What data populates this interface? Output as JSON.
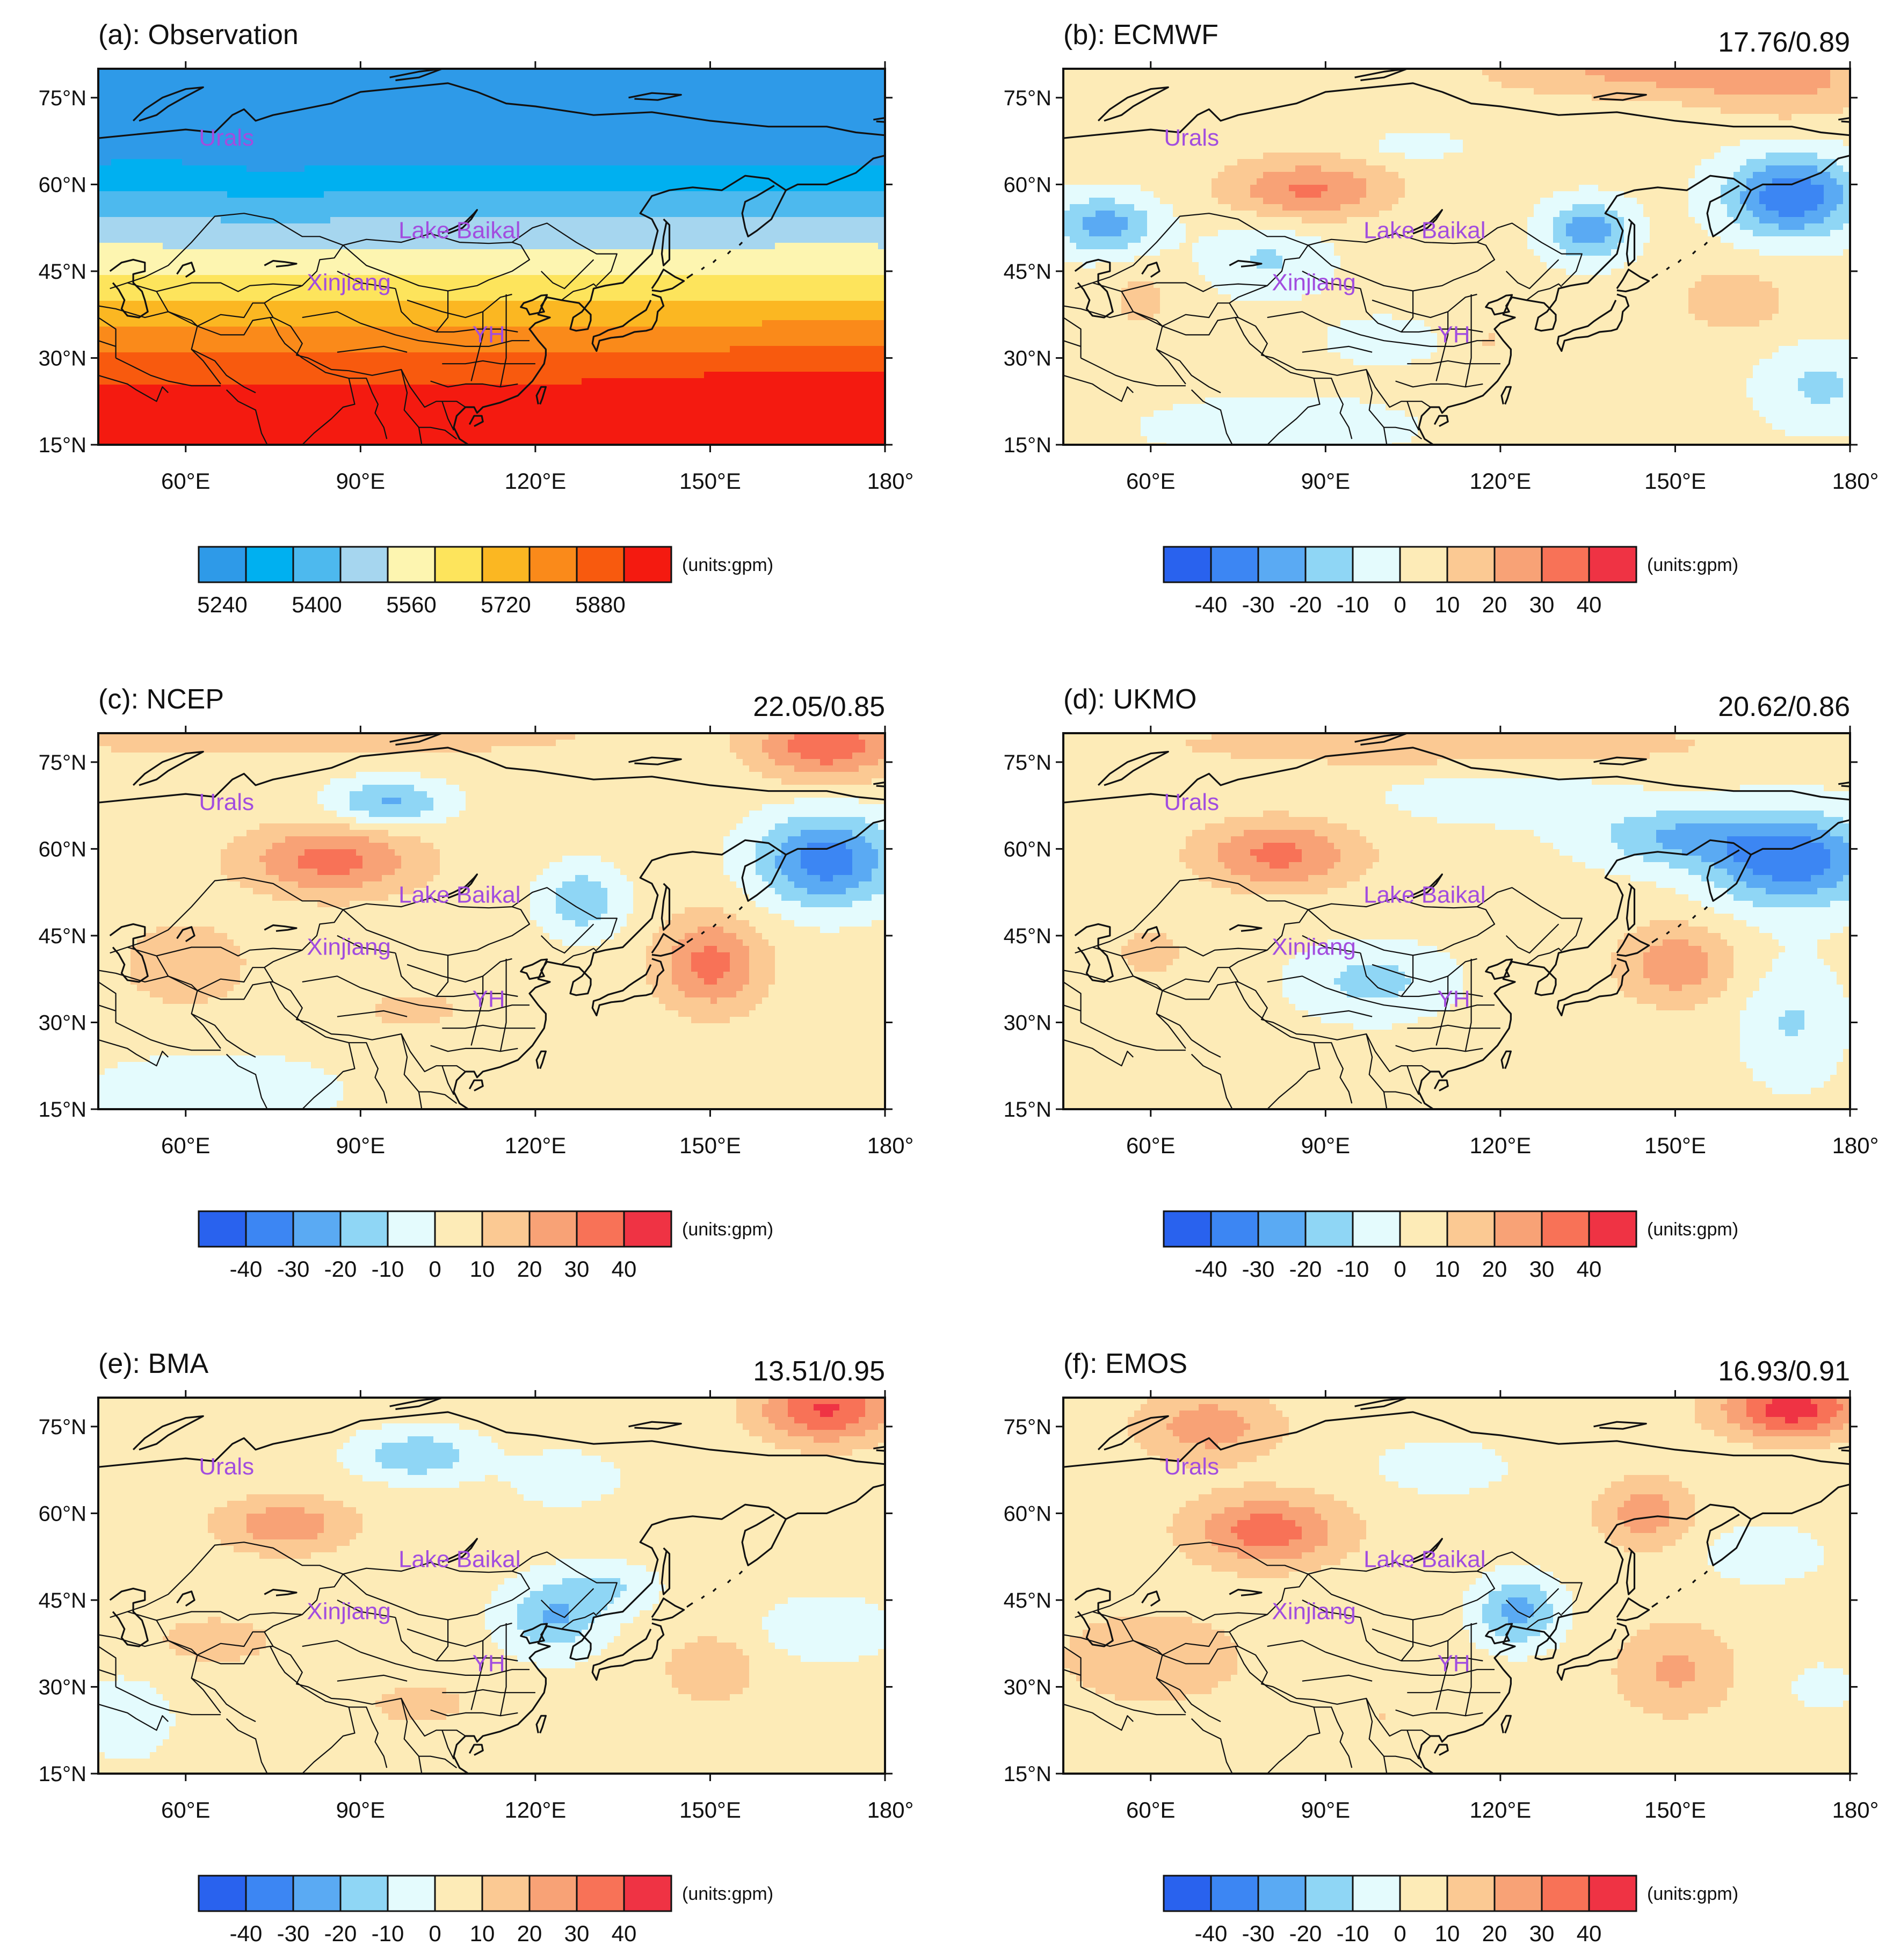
{
  "figure": {
    "axes": {
      "lat_labels": [
        "75°N",
        "60°N",
        "45°N",
        "30°N",
        "15°N"
      ],
      "lat_values": [
        75,
        60,
        45,
        30,
        15
      ],
      "lon_labels": [
        "60°E",
        "90°E",
        "120°E",
        "150°E",
        "180°"
      ],
      "lon_values": [
        60,
        90,
        120,
        150,
        180
      ],
      "lon_range": [
        45,
        180
      ],
      "lat_range": [
        15,
        80
      ]
    },
    "regions": [
      {
        "name": "Urals",
        "lon": 67,
        "lat": 68
      },
      {
        "name": "Lake Baikal",
        "lon": 107,
        "lat": 52
      },
      {
        "name": "Xinjiang",
        "lon": 88,
        "lat": 43
      },
      {
        "name": "YH",
        "lon": 112,
        "lat": 34
      }
    ],
    "colors": {
      "region_label": "#a24ddf",
      "obs": [
        "#2e9ae8",
        "#00b0f0",
        "#4db9ee",
        "#a6d6ef",
        "#fdf5b0",
        "#fde45c",
        "#fbb722",
        "#fa8a1a",
        "#f85a0e",
        "#f41a10"
      ],
      "anom": [
        "#2962ee",
        "#3c86f3",
        "#5aaaf3",
        "#8fd6f5",
        "#e4fbfd",
        "#fdebb7",
        "#fbc993",
        "#f8a276",
        "#f87257",
        "#ef3344"
      ]
    },
    "colorbars": {
      "obs_ticks": [
        "5240",
        "5400",
        "5560",
        "5720",
        "5880"
      ],
      "anom_ticks": [
        "-40",
        "-30",
        "-20",
        "-10",
        "0",
        "10",
        "20",
        "30",
        "40"
      ],
      "units": "(units:gpm)"
    },
    "panels": [
      {
        "id": "a",
        "title": "(a): Observation",
        "score": "",
        "kind": "obs",
        "field": {
          "base": 5520,
          "gradient": -17,
          "lat0": 47,
          "features": [
            [
              75,
              60,
              10,
              8,
              -20
            ],
            [
              170,
              30,
              20,
              8,
              30
            ],
            [
              150,
              22,
              15,
              6,
              25
            ],
            [
              55,
              70,
              15,
              10,
              12
            ]
          ]
        }
      },
      {
        "id": "b",
        "title": "(b): ECMWF",
        "score": "17.76/0.89",
        "kind": "anom",
        "field": {
          "base": 3,
          "features": [
            [
              87,
              59,
              14,
              5,
              28
            ],
            [
              95,
              70,
              30,
              7,
              5
            ],
            [
              150,
              80,
              30,
              5,
              22
            ],
            [
              170,
              76,
              15,
              6,
              12
            ],
            [
              170,
              58,
              11,
              7,
              -42
            ],
            [
              135,
              52,
              7,
              5,
              -30
            ],
            [
              52,
              53,
              9,
              5,
              -28
            ],
            [
              80,
              47,
              10,
              6,
              -14
            ],
            [
              160,
              40,
              10,
              6,
              14
            ],
            [
              175,
              25,
              10,
              7,
              -15
            ],
            [
              100,
              33,
              12,
              5,
              -6
            ],
            [
              82,
              18,
              22,
              5,
              -10
            ],
            [
              118,
              33,
              5,
              4,
              8
            ],
            [
              58,
              40,
              6,
              6,
              10
            ],
            [
              105,
              67,
              10,
              3,
              -12
            ]
          ]
        }
      },
      {
        "id": "c",
        "title": "(c): NCEP",
        "score": "22.05/0.85",
        "kind": "anom",
        "field": {
          "base": 4,
          "features": [
            [
              85,
              58,
              15,
              6,
              30
            ],
            [
              95,
              68,
              10,
              4,
              -26
            ],
            [
              170,
              78,
              12,
              6,
              34
            ],
            [
              80,
              80,
              50,
              4,
              15
            ],
            [
              170,
              58,
              12,
              8,
              -40
            ],
            [
              128,
              51,
              7,
              6,
              -22
            ],
            [
              150,
              40,
              9,
              8,
              30
            ],
            [
              60,
              40,
              10,
              7,
              16
            ],
            [
              100,
              32,
              12,
              4,
              10
            ],
            [
              65,
              18,
              20,
              6,
              -14
            ],
            [
              120,
              30,
              20,
              8,
              -3
            ]
          ]
        }
      },
      {
        "id": "d",
        "title": "(d): UKMO",
        "score": "20.62/0.86",
        "kind": "anom",
        "field": {
          "base": 3,
          "features": [
            [
              82,
              59,
              14,
              6,
              30
            ],
            [
              170,
              58,
              14,
              8,
              -40
            ],
            [
              150,
              62,
              15,
              5,
              -22
            ],
            [
              120,
              69,
              22,
              5,
              -8
            ],
            [
              98,
              37,
              12,
              6,
              -17
            ],
            [
              150,
              40,
              10,
              7,
              24
            ],
            [
              110,
              78,
              50,
              4,
              15
            ],
            [
              60,
              42,
              8,
              6,
              10
            ],
            [
              170,
              30,
              8,
              10,
              -14
            ],
            [
              120,
              25,
              10,
              5,
              5
            ]
          ]
        }
      },
      {
        "id": "e",
        "title": "(e): BMA",
        "score": "13.51/0.95",
        "kind": "anom",
        "field": {
          "base": 3,
          "features": [
            [
              77,
              58,
              12,
              5,
              24
            ],
            [
              100,
              70,
              10,
              4,
              -22
            ],
            [
              170,
              78,
              12,
              6,
              38
            ],
            [
              125,
              66,
              8,
              4,
              -12
            ],
            [
              123,
              42,
              8,
              6,
              -24
            ],
            [
              132,
              47,
              8,
              4,
              -14
            ],
            [
              150,
              33,
              8,
              6,
              16
            ],
            [
              65,
              38,
              15,
              6,
              10
            ],
            [
              100,
              27,
              12,
              5,
              10
            ],
            [
              170,
              40,
              10,
              5,
              -12
            ],
            [
              50,
              25,
              8,
              8,
              -8
            ]
          ]
        }
      },
      {
        "id": "f",
        "title": "(f): EMOS",
        "score": "16.93/0.91",
        "kind": "anom",
        "field": {
          "base": 4,
          "features": [
            [
              80,
              57,
              13,
              6,
              32
            ],
            [
              70,
              75,
              12,
              6,
              22
            ],
            [
              145,
              60,
              8,
              6,
              22
            ],
            [
              170,
              78,
              12,
              5,
              42
            ],
            [
              123,
              43,
              7,
              6,
              -28
            ],
            [
              110,
              68,
              10,
              4,
              -14
            ],
            [
              150,
              33,
              10,
              8,
              18
            ],
            [
              60,
              35,
              18,
              9,
              12
            ],
            [
              165,
              53,
              10,
              5,
              -12
            ],
            [
              100,
              25,
              15,
              6,
              6
            ],
            [
              175,
              30,
              8,
              6,
              -6
            ]
          ]
        }
      }
    ]
  }
}
